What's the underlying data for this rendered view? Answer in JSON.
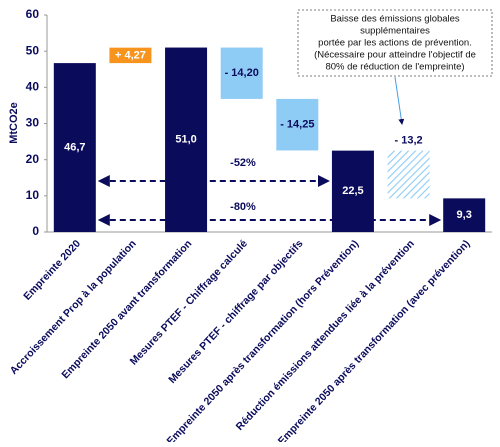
{
  "chart_data": {
    "type": "waterfall",
    "y_label": "MtCO2e",
    "categories": [
      "Empreinte 2020",
      "Accroissement Prop à la population",
      "Empreinte 2050 avant transformation",
      "Mesures PTEF - Chiffrage calculé",
      "Mesures PTEF - chiffrage par objectifs",
      "Empreinte 2050 après transformation (hors Prévention)",
      "Réduction émissions attendues liée à la prévention",
      "Empreinte 2050 après transformation (avec prévention)"
    ],
    "values": [
      46.7,
      4.27,
      51.0,
      -14.2,
      -14.25,
      22.5,
      -13.2,
      9.3
    ],
    "value_labels": [
      "46,7",
      "+ 4,27",
      "51,0",
      "- 14,20",
      "- 14,25",
      "22,5",
      "- 13,2",
      "9,3"
    ],
    "is_total": [
      true,
      false,
      true,
      false,
      false,
      true,
      false,
      true
    ],
    "hatched": [
      false,
      false,
      false,
      false,
      false,
      false,
      true,
      false
    ],
    "colors": [
      "#0b0b5c",
      "#f7941d",
      "#0b0b5c",
      "#8ecbf5",
      "#8ecbf5",
      "#0b0b5c",
      "#8ecbf5",
      "#0b0b5c"
    ],
    "ylim": [
      0,
      60
    ],
    "yticks": [
      0,
      10,
      20,
      30,
      40,
      50,
      60
    ],
    "annotations": [
      "-52%",
      "-80%"
    ],
    "callout": [
      "Baisse des émissions globales",
      "supplémentaires",
      "portée par les actions de prévention.",
      "(Nécessaire pour atteindre l'objectif de",
      "80% de réduction de l'empreinte)"
    ]
  }
}
